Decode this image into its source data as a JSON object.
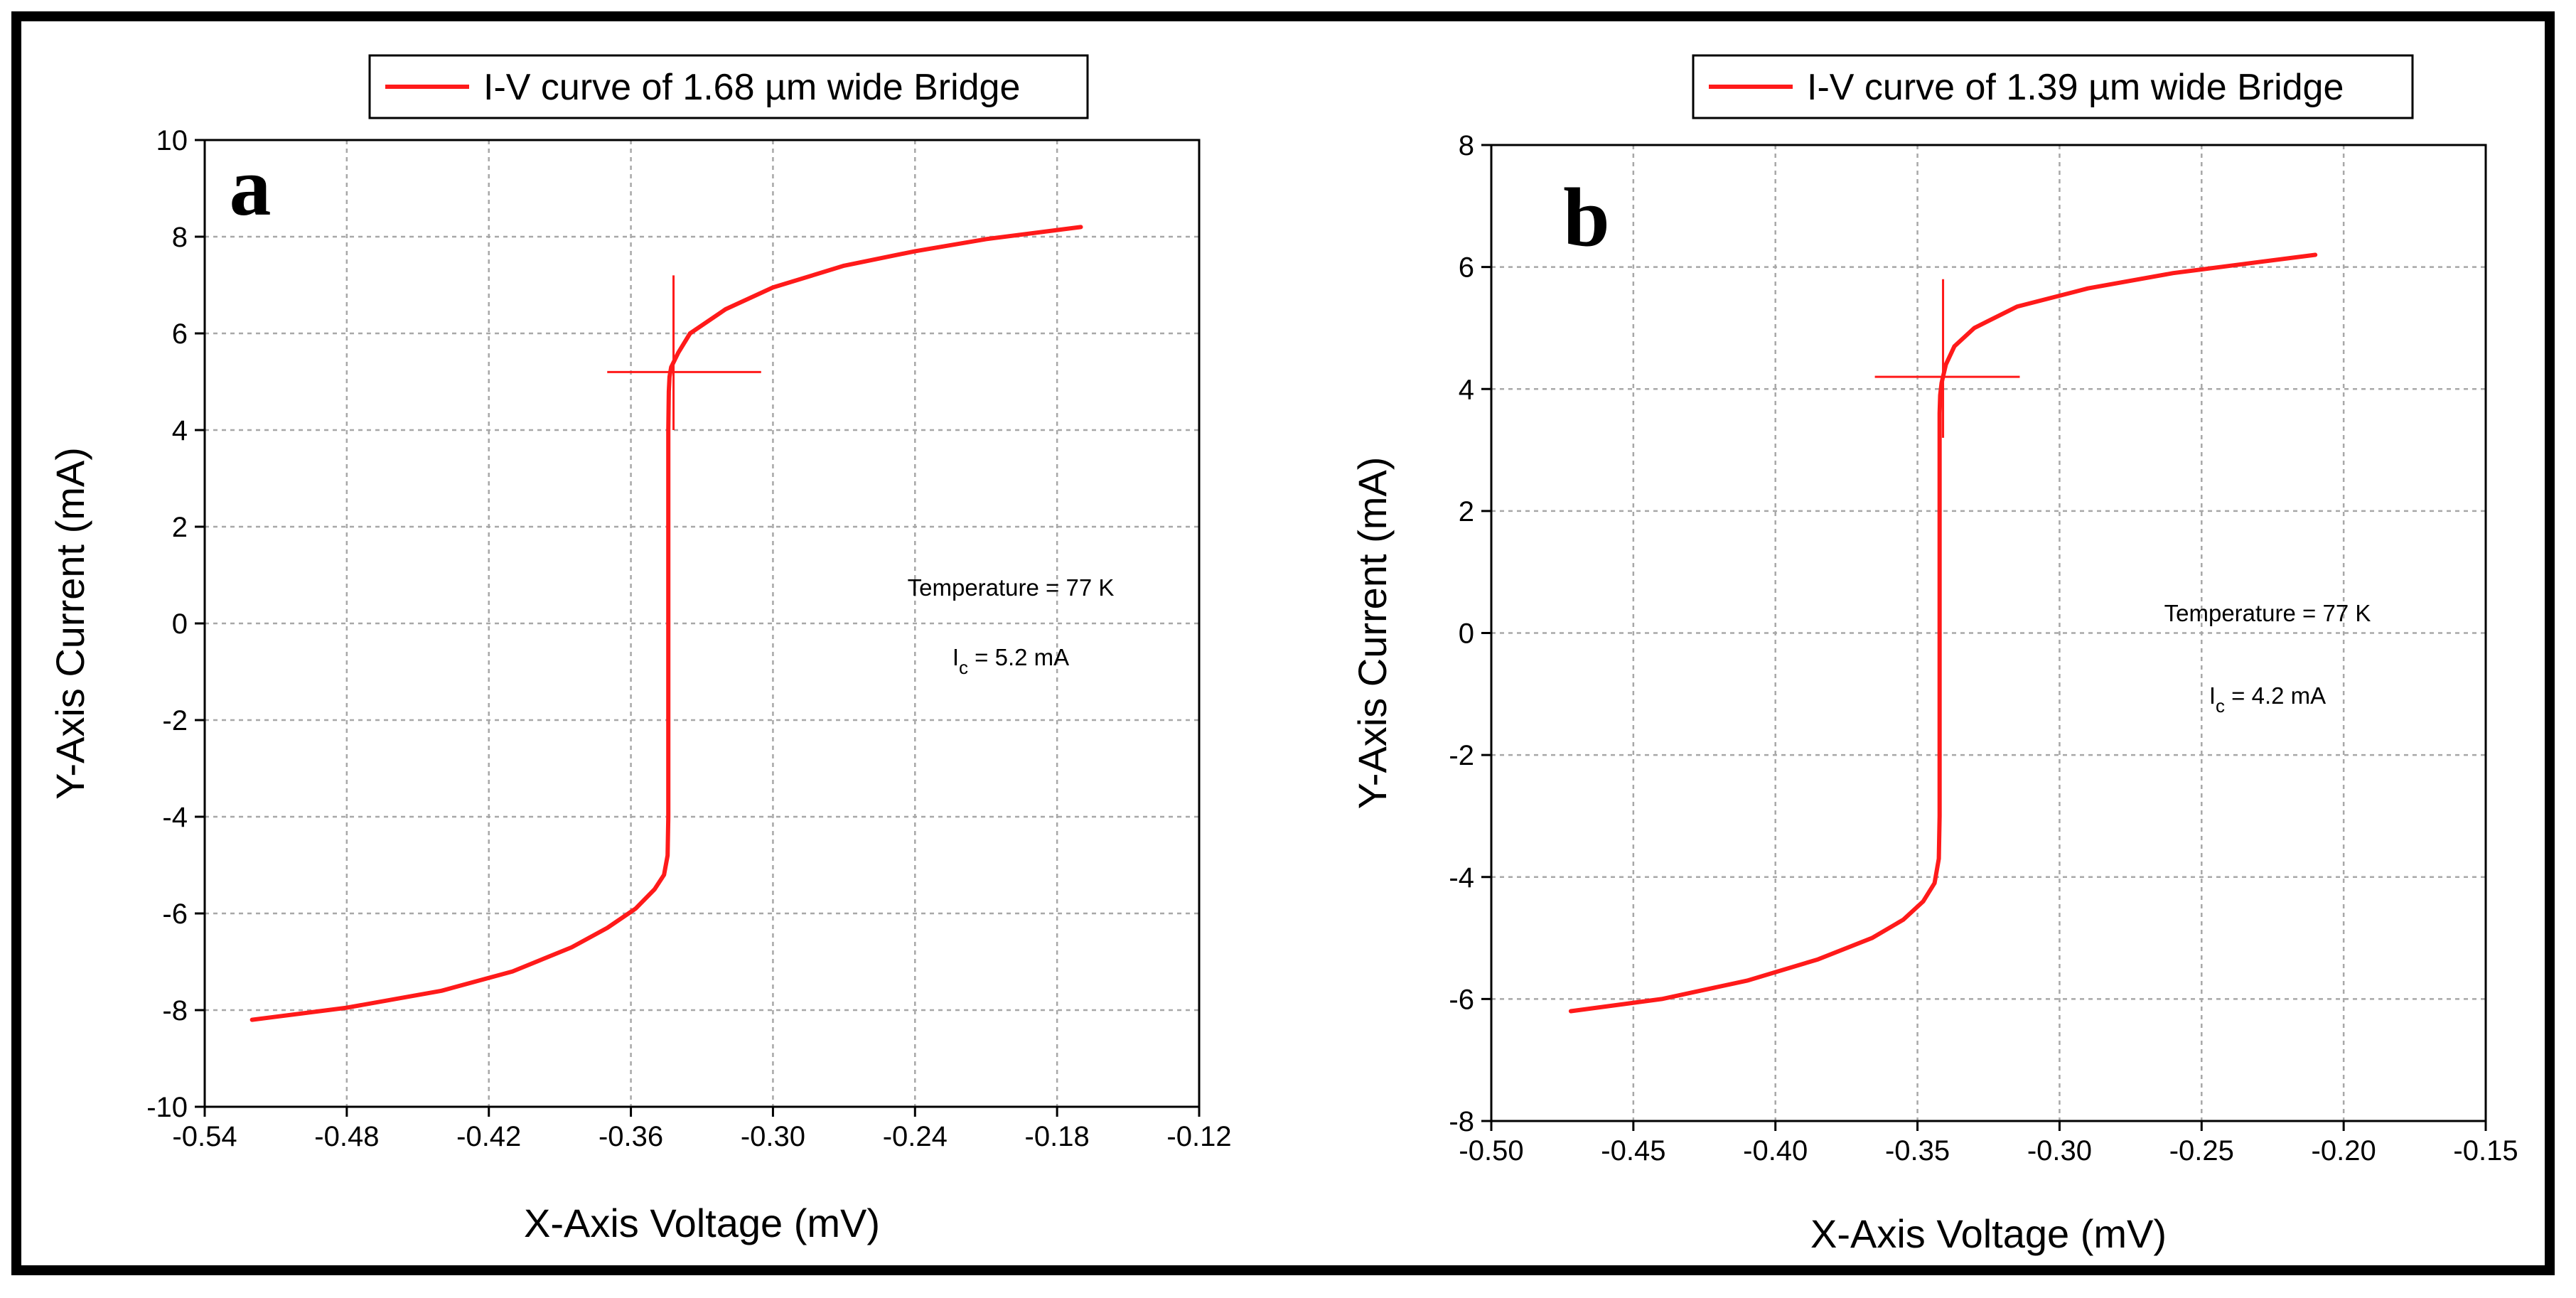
{
  "colors": {
    "curve": "#ff1a1a",
    "grid": "#a8a8a8",
    "axis": "#000000",
    "frame": "#000000"
  },
  "chart_data": [
    {
      "type": "line",
      "panel_label": "a",
      "legend": "I-V curve of 1.68 µm wide Bridge",
      "xlabel": "X-Axis Voltage (mV)",
      "ylabel": "Y-Axis Current (mA)",
      "xlim": [
        -0.54,
        -0.12
      ],
      "ylim": [
        -10,
        10
      ],
      "xticks": [
        "-0.54",
        "-0.48",
        "-0.42",
        "-0.36",
        "-0.30",
        "-0.24",
        "-0.18",
        "-0.12"
      ],
      "yticks": [
        "10",
        "8",
        "6",
        "4",
        "2",
        "0",
        "-2",
        "-4",
        "-6",
        "-8",
        "-10"
      ],
      "annotation_temperature": "Temperature = 77 K",
      "annotation_ic_prefix": "I",
      "annotation_ic_sub": "c",
      "annotation_ic_value": " = 5.2 mA",
      "critical_point": {
        "x": -0.342,
        "y": 5.2
      },
      "crosshair": {
        "x_range": [
          -0.37,
          -0.305
        ],
        "y_range": [
          4.0,
          7.2
        ]
      },
      "series": [
        {
          "name": "I-V curve of 1.68 µm wide Bridge",
          "x": [
            -0.52,
            -0.48,
            -0.44,
            -0.41,
            -0.385,
            -0.37,
            -0.358,
            -0.35,
            -0.346,
            -0.3445,
            -0.3442,
            -0.3442,
            -0.3442,
            -0.3442,
            -0.344,
            -0.3437,
            -0.343,
            -0.34,
            -0.335,
            -0.32,
            -0.3,
            -0.27,
            -0.24,
            -0.21,
            -0.17
          ],
          "y": [
            -8.2,
            -7.95,
            -7.6,
            -7.2,
            -6.7,
            -6.3,
            -5.9,
            -5.5,
            -5.2,
            -4.8,
            -4.0,
            0.0,
            2.0,
            4.0,
            4.8,
            5.1,
            5.3,
            5.6,
            6.0,
            6.5,
            6.95,
            7.4,
            7.7,
            7.95,
            8.2
          ]
        }
      ]
    },
    {
      "type": "line",
      "panel_label": "b",
      "legend": "I-V curve of 1.39 µm wide Bridge",
      "xlabel": "X-Axis Voltage (mV)",
      "ylabel": "Y-Axis Current (mA)",
      "xlim": [
        -0.5,
        -0.15
      ],
      "ylim": [
        -8,
        8
      ],
      "xticks": [
        "-0.50",
        "-0.45",
        "-0.40",
        "-0.35",
        "-0.30",
        "-0.25",
        "-0.20",
        "-0.15"
      ],
      "yticks": [
        "8",
        "6",
        "4",
        "2",
        "0",
        "-2",
        "-4",
        "-6",
        "-8"
      ],
      "annotation_temperature": "Temperature = 77 K",
      "annotation_ic_prefix": "I",
      "annotation_ic_sub": "c",
      "annotation_ic_value": " = 4.2 mA",
      "critical_point": {
        "x": -0.341,
        "y": 4.2
      },
      "crosshair": {
        "x_range": [
          -0.365,
          -0.314
        ],
        "y_range": [
          3.2,
          5.8
        ]
      },
      "series": [
        {
          "name": "I-V curve of 1.39 µm wide Bridge",
          "x": [
            -0.472,
            -0.44,
            -0.41,
            -0.385,
            -0.366,
            -0.355,
            -0.348,
            -0.344,
            -0.3425,
            -0.3422,
            -0.3422,
            -0.3422,
            -0.3422,
            -0.342,
            -0.3415,
            -0.34,
            -0.337,
            -0.33,
            -0.315,
            -0.29,
            -0.26,
            -0.235,
            -0.21
          ],
          "y": [
            -6.2,
            -6.0,
            -5.7,
            -5.35,
            -5.0,
            -4.7,
            -4.4,
            -4.1,
            -3.7,
            -3.0,
            0.0,
            2.0,
            3.6,
            3.9,
            4.1,
            4.4,
            4.7,
            5.0,
            5.35,
            5.65,
            5.9,
            6.05,
            6.2
          ]
        }
      ]
    }
  ]
}
